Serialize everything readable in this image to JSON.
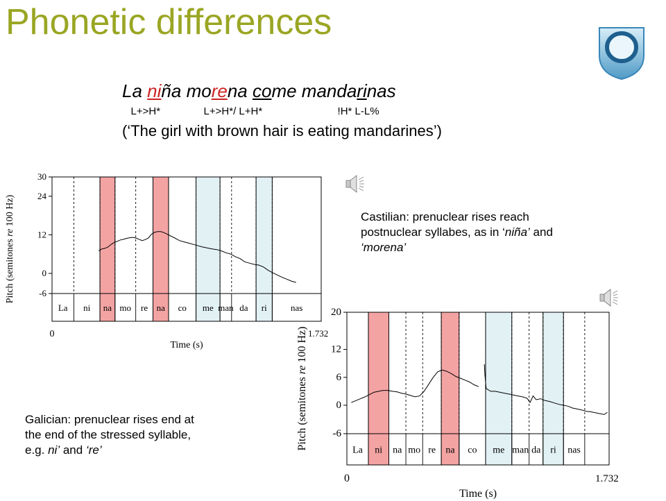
{
  "title": "Phonetic differences",
  "sentence": {
    "parts": [
      {
        "text": "La ",
        "style": "plain"
      },
      {
        "text": "ni",
        "style": "red-underline"
      },
      {
        "text": "ña ",
        "style": "plain"
      },
      {
        "text": "mo",
        "style": "plain"
      },
      {
        "text": "re",
        "style": "red-underline"
      },
      {
        "text": "na ",
        "style": "plain"
      },
      {
        "text": "co",
        "style": "underline"
      },
      {
        "text": "me manda",
        "style": "plain"
      },
      {
        "text": "ri",
        "style": "underline"
      },
      {
        "text": "nas",
        "style": "plain"
      }
    ],
    "tones_line": "   L+>H*               L+>H*/ L+H*                          !H* L-L%",
    "gloss": "(‘The girl with brown hair is eating mandarines’)"
  },
  "captions": {
    "castilian": {
      "line1": "Castilian: prenuclear rises reach",
      "line2_a": "postnuclear syllabes, as in ‘",
      "line2_em": "niña’",
      "line2_b": " and",
      "line3_em": "‘morena’"
    },
    "galician": {
      "line1": "Galician: prenuclear rises end at",
      "line2": "the end of the stressed syllable,",
      "line3_a": "e.g. ",
      "line3_em1": "ni’",
      "line3_b": " and ",
      "line3_em2": "‘re’"
    }
  },
  "icons": {
    "logo": "open-university-logo",
    "audio": "speaker-icon"
  },
  "colors": {
    "title": "#9aa623",
    "highlight_red": "#f4a3a3",
    "highlight_blue": "#e2f1f4",
    "stress_text": "#cc2222"
  },
  "plots": [
    {
      "id": "castilian",
      "ylabel_main": "Pitch (semitones ",
      "ylabel_re": "re",
      "ylabel_tail": " 100 Hz)",
      "xlabel": "Time (s)",
      "xmin_label": "0",
      "xmax_label": "1.732",
      "y_min": -6,
      "y_max": 30,
      "y_ticks": [
        "30",
        "24",
        "12",
        "0",
        "-6"
      ],
      "y_tick_values": [
        30,
        24,
        12,
        0,
        -6
      ],
      "boundaries": [
        0.081,
        0.178,
        0.234,
        0.311,
        0.375,
        0.433,
        0.535,
        0.624,
        0.667,
        0.758,
        0.818
      ],
      "syllables": [
        "La",
        "ni",
        "na",
        "mo",
        "re",
        "na",
        "co",
        "me",
        "man",
        "da",
        "ri",
        "nas"
      ],
      "highlights": [
        {
          "from": 0.178,
          "to": 0.234,
          "color": "red"
        },
        {
          "from": 0.375,
          "to": 0.433,
          "color": "red"
        },
        {
          "from": 0.535,
          "to": 0.624,
          "color": "blue"
        },
        {
          "from": 0.758,
          "to": 0.818,
          "color": "blue"
        }
      ],
      "f0": [
        [
          0.3,
          7.0
        ],
        [
          0.32,
          7.6
        ],
        [
          0.34,
          7.8
        ],
        [
          0.36,
          8.2
        ],
        [
          0.38,
          9.0
        ],
        [
          0.4,
          9.6
        ],
        [
          0.42,
          10.0
        ],
        [
          0.44,
          10.4
        ],
        [
          0.46,
          10.6
        ],
        [
          0.48,
          10.9
        ],
        [
          0.5,
          11.1
        ],
        [
          0.52,
          11.2
        ],
        [
          0.54,
          11.0
        ],
        [
          0.56,
          10.6
        ],
        [
          0.58,
          10.2
        ],
        [
          0.6,
          10.5
        ],
        [
          0.62,
          11.0
        ],
        [
          0.64,
          12.2
        ],
        [
          0.66,
          12.8
        ],
        [
          0.68,
          13.0
        ],
        [
          0.7,
          13.0
        ],
        [
          0.72,
          12.7
        ],
        [
          0.79,
          11.0
        ],
        [
          0.82,
          10.2
        ],
        [
          0.85,
          9.8
        ],
        [
          0.88,
          9.4
        ],
        [
          0.91,
          9.0
        ],
        [
          0.94,
          8.6
        ],
        [
          0.97,
          8.2
        ],
        [
          1.0,
          7.9
        ],
        [
          1.03,
          7.6
        ],
        [
          1.06,
          7.4
        ],
        [
          1.09,
          7.0
        ],
        [
          1.12,
          6.4
        ],
        [
          1.15,
          6.0
        ],
        [
          1.18,
          5.2
        ],
        [
          1.21,
          4.6
        ],
        [
          1.24,
          3.6
        ],
        [
          1.27,
          3.2
        ],
        [
          1.3,
          2.8
        ],
        [
          1.33,
          2.6
        ],
        [
          1.36,
          2.0
        ],
        [
          1.39,
          1.0
        ],
        [
          1.42,
          0.2
        ],
        [
          1.45,
          -0.5
        ],
        [
          1.48,
          -1.2
        ],
        [
          1.51,
          -1.8
        ],
        [
          1.54,
          -2.4
        ],
        [
          1.57,
          -2.8
        ]
      ]
    },
    {
      "id": "galician",
      "ylabel_main": "Pitch (semitones ",
      "ylabel_re": "re",
      "ylabel_tail": " 100 Hz)",
      "xlabel": "Time (s)",
      "xmin_label": "0",
      "xmax_label": "1.732",
      "y_min": -6,
      "y_max": 20,
      "y_ticks": [
        "20",
        "12",
        "6",
        "0",
        "-6"
      ],
      "y_tick_values": [
        20,
        12,
        6,
        0,
        -6
      ],
      "boundaries": [
        0.082,
        0.16,
        0.225,
        0.289,
        0.36,
        0.428,
        0.529,
        0.629,
        0.695,
        0.748,
        0.826,
        0.907
      ],
      "syllables": [
        "La",
        "ni",
        "na",
        "mo",
        "re",
        "na",
        "co",
        "me",
        "man",
        "da",
        "ri",
        "nas"
      ],
      "highlights": [
        {
          "from": 0.082,
          "to": 0.16,
          "color": "red"
        },
        {
          "from": 0.36,
          "to": 0.428,
          "color": "red"
        },
        {
          "from": 0.529,
          "to": 0.629,
          "color": "blue"
        },
        {
          "from": 0.748,
          "to": 0.826,
          "color": "blue"
        }
      ],
      "f0": [
        [
          0.03,
          0.6
        ],
        [
          0.06,
          1.0
        ],
        [
          0.09,
          1.4
        ],
        [
          0.12,
          1.8
        ],
        [
          0.15,
          2.3
        ],
        [
          0.18,
          2.8
        ],
        [
          0.21,
          3.0
        ],
        [
          0.24,
          3.2
        ],
        [
          0.27,
          3.2
        ],
        [
          0.3,
          3.0
        ],
        [
          0.33,
          2.9
        ],
        [
          0.36,
          2.6
        ],
        [
          0.39,
          2.4
        ],
        [
          0.42,
          2.1
        ],
        [
          0.45,
          1.8
        ],
        [
          0.48,
          2.0
        ],
        [
          0.51,
          3.0
        ],
        [
          0.54,
          4.5
        ],
        [
          0.57,
          6.0
        ],
        [
          0.6,
          7.2
        ],
        [
          0.63,
          7.6
        ],
        [
          0.66,
          7.3
        ],
        [
          0.69,
          6.8
        ],
        [
          0.72,
          6.2
        ],
        [
          0.75,
          5.8
        ],
        [
          0.78,
          5.4
        ],
        [
          0.81,
          5.0
        ],
        [
          0.84,
          4.4
        ],
        [
          0.87,
          4.0
        ]
      ],
      "f0b": [
        [
          0.908,
          8.8
        ],
        [
          0.912,
          6.5
        ],
        [
          0.92,
          3.6
        ],
        [
          0.95,
          3.0
        ],
        [
          0.98,
          3.0
        ],
        [
          1.01,
          2.8
        ],
        [
          1.04,
          2.6
        ],
        [
          1.07,
          2.4
        ],
        [
          1.1,
          2.2
        ],
        [
          1.13,
          2.0
        ],
        [
          1.16,
          1.8
        ],
        [
          1.19,
          1.5
        ],
        [
          1.21,
          0.6
        ],
        [
          1.23,
          2.0
        ],
        [
          1.25,
          1.2
        ],
        [
          1.28,
          1.4
        ],
        [
          1.31,
          1.0
        ],
        [
          1.34,
          0.8
        ],
        [
          1.37,
          0.5
        ],
        [
          1.4,
          0.2
        ],
        [
          1.43,
          0.0
        ],
        [
          1.46,
          -0.2
        ],
        [
          1.49,
          -0.6
        ],
        [
          1.52,
          -0.8
        ],
        [
          1.55,
          -1.0
        ],
        [
          1.58,
          -1.3
        ],
        [
          1.61,
          -1.4
        ],
        [
          1.64,
          -1.6
        ],
        [
          1.67,
          -1.8
        ],
        [
          1.7,
          -2.0
        ],
        [
          1.72,
          -1.5
        ]
      ]
    }
  ]
}
